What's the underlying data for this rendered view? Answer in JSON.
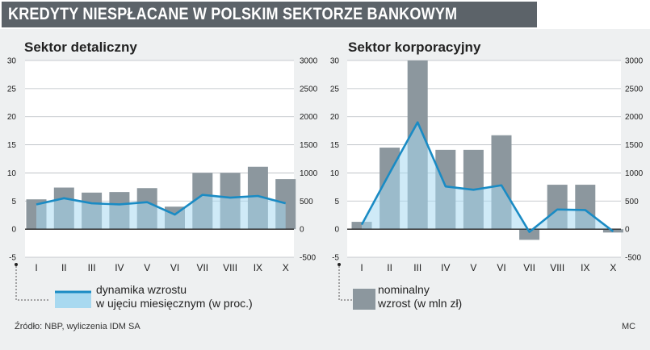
{
  "header": {
    "title": "KREDYTY NIESPŁACANE W POLSKIM SEKTORZE BANKOWYM"
  },
  "colors": {
    "bar": "#8c979e",
    "line": "#1a8bc4",
    "legend_box": "#a8d9f0",
    "background": "#eef0f1",
    "title_bg": "#5c6369"
  },
  "chart_data": [
    {
      "type": "bar",
      "title": "Sektor detaliczny",
      "categories": [
        "I",
        "II",
        "III",
        "IV",
        "V",
        "VI",
        "VII",
        "VIII",
        "IX",
        "X"
      ],
      "left_axis": {
        "ylim": [
          -5,
          30
        ],
        "ticks": [
          "-5",
          "0",
          "5",
          "10",
          "15",
          "20",
          "25",
          "30"
        ]
      },
      "right_axis": {
        "ylim": [
          -500,
          3000
        ],
        "ticks": [
          "-500",
          "0",
          "500",
          "1000",
          "1500",
          "2000",
          "2500",
          "3000"
        ]
      },
      "series": [
        {
          "name": "nominalny wzrost (w mln zł)",
          "type": "bar",
          "axis": "right",
          "values": [
            530,
            740,
            650,
            660,
            730,
            400,
            1000,
            1000,
            1110,
            890
          ]
        },
        {
          "name": "dynamika wzrostu w ujęciu miesięcznym (w proc.)",
          "type": "line",
          "axis": "left",
          "values": [
            4.4,
            5.5,
            4.6,
            4.4,
            4.8,
            2.6,
            6.1,
            5.6,
            5.9,
            4.6
          ]
        }
      ],
      "grid": "horizontal"
    },
    {
      "type": "bar",
      "title": "Sektor korporacyjny",
      "categories": [
        "I",
        "II",
        "III",
        "IV",
        "V",
        "VI",
        "VII",
        "VIII",
        "IX",
        "X"
      ],
      "left_axis": {
        "ylim": [
          -5,
          30
        ],
        "ticks": [
          "-5",
          "0",
          "5",
          "10",
          "15",
          "20",
          "25",
          "30"
        ]
      },
      "right_axis": {
        "ylim": [
          -500,
          3000
        ],
        "ticks": [
          "-500",
          "0",
          "500",
          "1000",
          "1500",
          "2000",
          "2500",
          "3000"
        ]
      },
      "series": [
        {
          "name": "nominalny wzrost (w mln zł)",
          "type": "bar",
          "axis": "right",
          "values": [
            130,
            1450,
            3000,
            1410,
            1410,
            1670,
            -190,
            790,
            790,
            -60
          ]
        },
        {
          "name": "dynamika wzrostu w ujęciu miesięcznym (w proc.)",
          "type": "line",
          "axis": "left",
          "values": [
            0.8,
            10.0,
            19.0,
            7.6,
            7.0,
            7.8,
            -0.5,
            3.5,
            3.4,
            -0.4
          ]
        }
      ],
      "grid": "horizontal"
    }
  ],
  "legend": {
    "line_label_1": "dynamika wzrostu",
    "line_label_2": "w ujęciu miesięcznym (w proc.)",
    "bar_label_1": "nominalny",
    "bar_label_2": "wzrost (w mln zł)"
  },
  "footer": {
    "source": "Źródło: NBP, wyliczenia IDM SA",
    "credit": "MC"
  }
}
